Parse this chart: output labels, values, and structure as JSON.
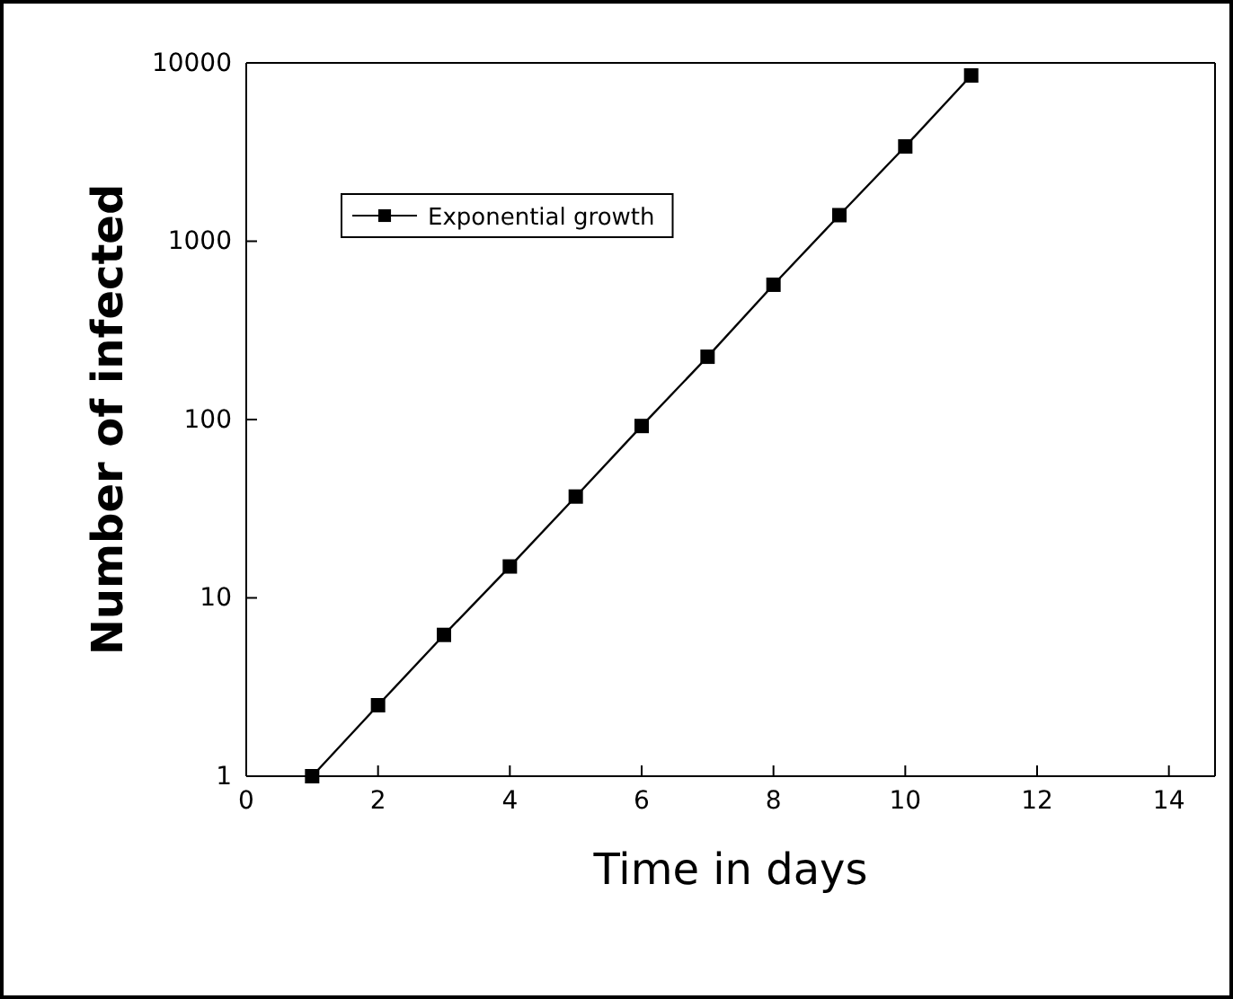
{
  "chart_data": {
    "type": "line",
    "xlabel": "Time in days",
    "ylabel": "Number of infected",
    "x": [
      1,
      2,
      3,
      4,
      5,
      6,
      7,
      8,
      9,
      10,
      11
    ],
    "series": [
      {
        "name": "Exponential growth",
        "color": "#000000",
        "values": [
          1,
          2.5,
          6.2,
          15,
          37,
          92,
          225,
          570,
          1400,
          3400,
          8500
        ]
      }
    ],
    "xlim": [
      0,
      14.7
    ],
    "xticks": [
      0,
      2,
      4,
      6,
      8,
      10,
      12,
      14
    ],
    "ylim": [
      1,
      10000
    ],
    "yticks": [
      1,
      10,
      100,
      1000,
      10000
    ],
    "log": true,
    "marker": "square",
    "line_style": "solid",
    "legend": "top left",
    "grid": false
  }
}
